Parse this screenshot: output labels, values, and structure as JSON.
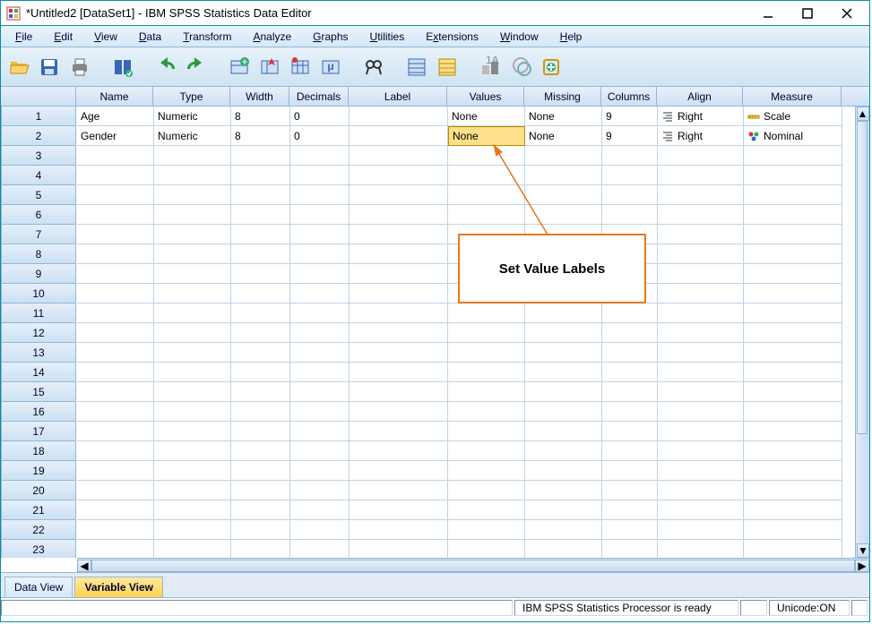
{
  "window": {
    "title": "*Untitled2 [DataSet1] - IBM SPSS Statistics Data Editor"
  },
  "menu": {
    "file": "File",
    "edit": "Edit",
    "view": "View",
    "data": "Data",
    "transform": "Transform",
    "analyze": "Analyze",
    "graphs": "Graphs",
    "utilities": "Utilities",
    "extensions": "Extensions",
    "window_m": "Window",
    "help": "Help"
  },
  "columns": {
    "name": "Name",
    "type": "Type",
    "width": "Width",
    "decimals": "Decimals",
    "label": "Label",
    "values": "Values",
    "missing": "Missing",
    "columns_c": "Columns",
    "align": "Align",
    "measure": "Measure"
  },
  "col_widths": {
    "name": 86,
    "type": 86,
    "width": 66,
    "decimals": 66,
    "label": 110,
    "values": 86,
    "missing": 86,
    "columns_c": 62,
    "align": 96,
    "measure": 110
  },
  "rows": [
    {
      "name": "Age",
      "type": "Numeric",
      "width": "8",
      "decimals": "0",
      "label": "",
      "values": "None",
      "missing": "None",
      "columns": "9",
      "align": "Right",
      "align_icon": "align-right",
      "measure": "Scale",
      "measure_icon": "scale",
      "selected": false
    },
    {
      "name": "Gender",
      "type": "Numeric",
      "width": "8",
      "decimals": "0",
      "label": "",
      "values": "None",
      "missing": "None",
      "columns": "9",
      "align": "Right",
      "align_icon": "align-right",
      "measure": "Nominal",
      "measure_icon": "nominal",
      "selected_values": true
    }
  ],
  "blank_rows": 21,
  "tabs": {
    "data_view": "Data View",
    "variable_view": "Variable View"
  },
  "status": {
    "ready": "IBM SPSS Statistics Processor is ready",
    "unicode": "Unicode:ON"
  },
  "callout": {
    "text": "Set Value Labels",
    "border_color": "#e87817"
  },
  "colors": {
    "accent": "#0a8aa8",
    "header_grad_a": "#e8f1fb",
    "header_grad_b": "#cde0f2",
    "grid_line": "#bcd3e8",
    "sel_bg": "#ffe08a",
    "sel_border": "#b88a00",
    "tab_active_a": "#ffe9a0",
    "tab_active_b": "#ffd24a"
  }
}
